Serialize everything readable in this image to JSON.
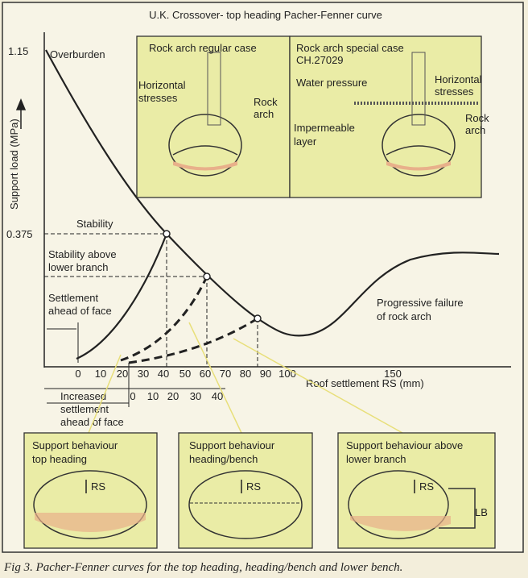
{
  "title": "U.K. Crossover- top heading Pacher-Fenner curve",
  "y_axis": {
    "label": "Support load (MPa)",
    "ticks": [
      "1.15",
      "0.375"
    ]
  },
  "x_axis": {
    "label": "Roof settlement RS (mm)",
    "ticks_top": [
      0,
      10,
      20,
      30,
      40,
      50,
      60,
      70,
      80,
      90,
      100,
      150
    ],
    "ticks_bottom": [
      0,
      10,
      20,
      30,
      40
    ]
  },
  "annotations": {
    "overburden": "Overburden",
    "stability": "Stability",
    "stability_above": [
      "Stability above",
      "lower branch"
    ],
    "settlement": [
      "Settlement",
      "ahead of face"
    ],
    "progressive": [
      "Progressive failure",
      "of rock arch"
    ],
    "increased": [
      "Increased",
      "settlement",
      "ahead of face"
    ]
  },
  "insets": [
    {
      "title": "Rock arch regular case",
      "labels": [
        "Horizontal",
        "stresses",
        "Rock",
        "arch"
      ]
    },
    {
      "title": "Rock arch special case",
      "subtitle": "CH.27029",
      "labels": [
        "Water pressure",
        "Horizontal",
        "stresses",
        "Impermeable",
        "layer",
        "Rock",
        "arch"
      ]
    }
  ],
  "panels": [
    {
      "title": [
        "Support behaviour",
        "top heading"
      ],
      "rs": "RS"
    },
    {
      "title": [
        "Support behaviour",
        "heading/bench"
      ],
      "rs": "RS"
    },
    {
      "title": [
        "Support behaviour above",
        "lower branch"
      ],
      "rs": "RS",
      "lb": "LB"
    }
  ],
  "caption": "Fig 3. Pacher-Fenner curves for the top heading, heading/bench and lower bench."
}
